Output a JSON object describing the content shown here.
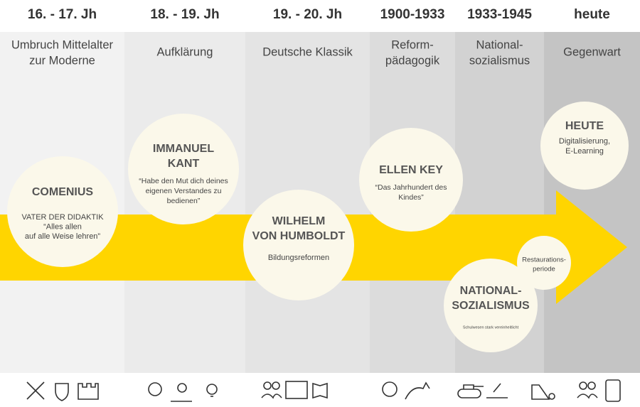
{
  "periods": [
    {
      "label": "16. - 17. Jh",
      "title": [
        "Umbruch Mittelalter",
        "zur Moderne"
      ]
    },
    {
      "label": "18. - 19. Jh",
      "title": [
        "Aufklärung"
      ]
    },
    {
      "label": "19. - 20. Jh",
      "title": [
        "Deutsche Klassik"
      ]
    },
    {
      "label": "1900-1933",
      "title": [
        "Reform-",
        "pädagogik"
      ]
    },
    {
      "label": "1933-1945",
      "title": [
        "National-",
        "sozialismus"
      ]
    },
    {
      "label": "heute",
      "title": [
        "Gegenwart"
      ]
    }
  ],
  "circles": [
    {
      "title": [
        "COMENIUS"
      ],
      "text": [
        "VATER DER DIDAKTIK",
        "“Alles allen",
        "auf alle Weise lehren”"
      ]
    },
    {
      "title": [
        "IMMANUEL",
        "KANT"
      ],
      "text": [
        "“Habe den Mut dich deines",
        "eigenen Verstandes zu",
        "bedienen”"
      ]
    },
    {
      "title": [
        "WILHELM",
        "VON HUMBOLDT"
      ],
      "text": [
        "Bildungsreformen"
      ]
    },
    {
      "title": [
        "ELLEN KEY"
      ],
      "text": [
        "“Das Jahrhundert des",
        "Kindes”"
      ]
    },
    {
      "title": [
        "NATIONAL-",
        "SOZIALISMUS"
      ],
      "text": [
        "Schulwesen stark vereinheitlicht"
      ]
    },
    {
      "title": [],
      "text": [
        "Restaurations-",
        "periode"
      ]
    },
    {
      "title": [
        "HEUTE"
      ],
      "text": [
        "Digitalisierung,",
        "E-Learning"
      ]
    }
  ]
}
